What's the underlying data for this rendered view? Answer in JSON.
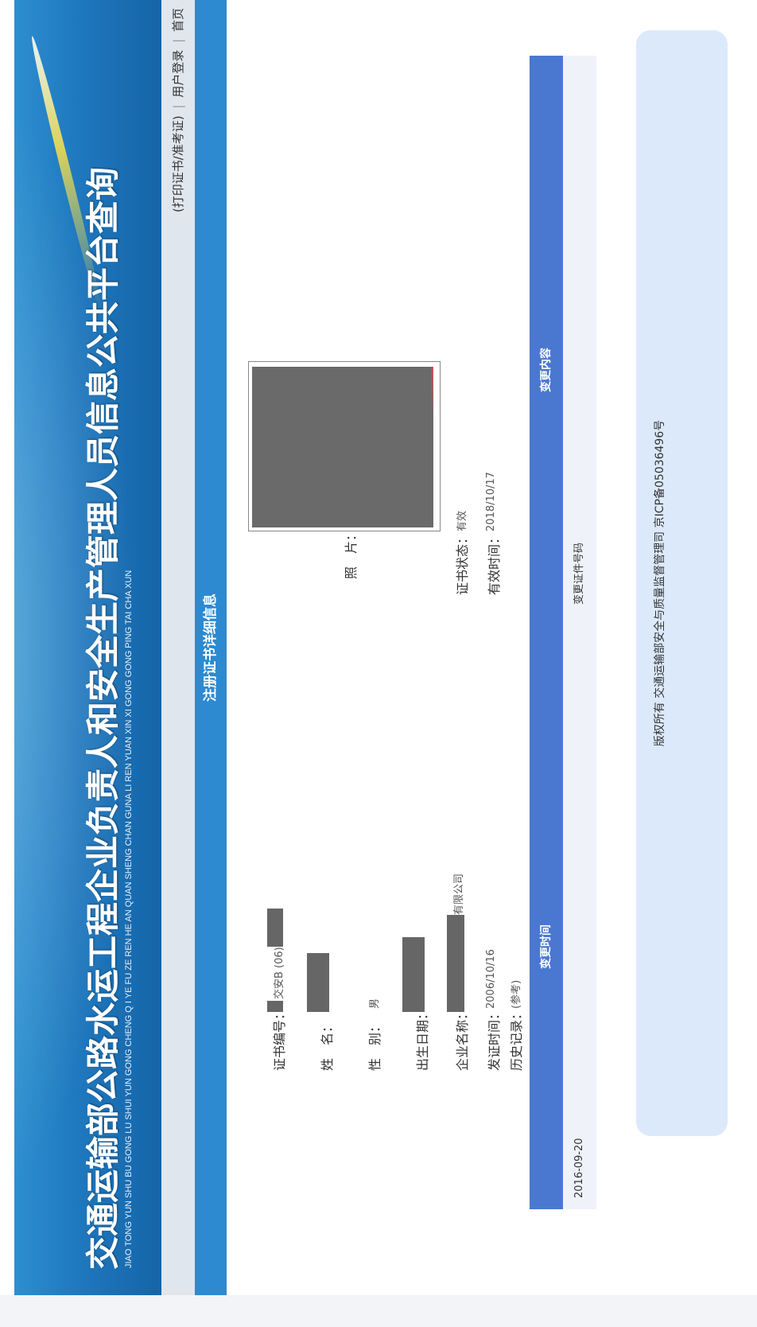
{
  "header": {
    "title": "交通运输部公路水运工程企业负责人和安全生产管理人员信息公共平台查询",
    "pinyin": "JIAO TONG YUN SHU BU GONG LU SHUI YUN GONG CHENG Q I YE FU ZE REN HE AN QUAN SHENG CHAN GUNA LI REN YUAN XIN XI GONG GONG PING TAI CHA XUN"
  },
  "nav": {
    "print_link": "(打印证书/准考证)",
    "login_link": "用户登录",
    "home_link": "首页",
    "separator": "|"
  },
  "section": {
    "title": "注册证书详细信息"
  },
  "fields": {
    "cert_no_label": "证书编号：",
    "cert_no_value": "交安B (06)G",
    "name_label": "姓　名：",
    "gender_label": "性　别：",
    "gender_value": "男",
    "birth_label": "出生日期：",
    "company_label": "企业名称：",
    "company_value": "有限公司",
    "issue_label": "发证时间：",
    "issue_value": "2006/10/16",
    "history_label": "历史记录：",
    "history_value": "(参考)",
    "photo_label": "照　片：",
    "status_label": "证书状态：",
    "status_value": "有效",
    "valid_label": "有效时间：",
    "valid_value": "2018/10/17"
  },
  "table": {
    "columns": [
      "变更时间",
      "变更内容"
    ],
    "rows": [
      [
        "2016-09-20",
        "变更证件号码"
      ]
    ]
  },
  "footer": {
    "text": "版权所有 交通运输部安全与质量监督管理司 京ICP备05036496号"
  },
  "colors": {
    "banner": "#1f77bd",
    "section_bar": "#2d8ad0",
    "table_header": "#4a78d0",
    "footer_bg": "#dce9fb",
    "redaction": "#666666"
  }
}
